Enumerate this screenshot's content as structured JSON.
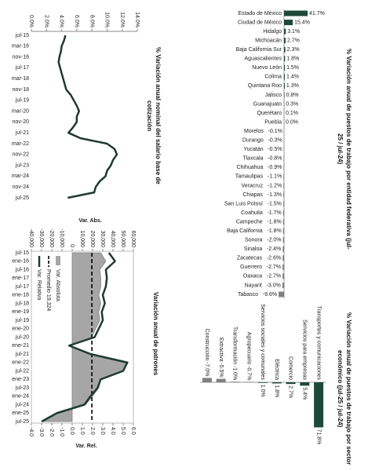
{
  "chart_data": [
    {
      "type": "line",
      "title": "% Variación anual nominal del salario base de cotización",
      "categories": [
        "jul-15",
        null,
        "mar-16",
        null,
        "nov-16",
        null,
        "jul-17",
        null,
        "mar-18",
        null,
        "nov-18",
        null,
        "jul-19",
        null,
        "mar-20",
        null,
        "nov-20",
        null,
        "jul-21",
        null,
        "mar-22",
        null,
        "nov-22",
        null,
        "jul-23",
        null,
        "mar-24",
        null,
        "nov-24",
        null,
        "jul-25"
      ],
      "values": [
        4.5,
        4.3,
        4.0,
        3.9,
        3.7,
        3.6,
        3.8,
        4.0,
        4.2,
        4.4,
        4.6,
        5.2,
        5.6,
        6.0,
        6.3,
        6.0,
        6.0,
        5.5,
        4.9,
        6.5,
        10.0,
        11.0,
        11.3,
        10.8,
        10.5,
        10.0,
        9.8,
        9.0,
        8.5,
        8.3,
        4.8
      ],
      "color": "#1e3a2f",
      "ylim": [
        0,
        14
      ],
      "yticks": [
        {
          "value": 0,
          "label": "0.0%"
        },
        {
          "value": 2,
          "label": "2.0%"
        },
        {
          "value": 4,
          "label": "4.0%"
        },
        {
          "value": 6,
          "label": "6.0%"
        },
        {
          "value": 8,
          "label": "8.0%"
        },
        {
          "value": 10,
          "label": "10.0%"
        },
        {
          "value": 12,
          "label": "12.0%"
        },
        {
          "value": 14,
          "label": "14.0%"
        }
      ]
    },
    {
      "type": "bar",
      "title": "% Variación anual de puestos de trabajo por entidad federativa (jul-25 / jul-24)",
      "categories": [
        "Estado de México",
        "Ciudad de México",
        "Hidalgo",
        "Michoacán",
        "Baja California Sur",
        "Aguascalientes",
        "Nuevo León",
        "Colima",
        "Quintana Roo",
        "Jalisco",
        "Guanajuato",
        "Querétaro",
        "Puebla",
        "Morelos",
        "Durango",
        "Yucatán",
        "Tlaxcala",
        "Chihuahua",
        "Tamaulipas",
        "Veracruz",
        "Chiapas",
        "San Luis Potosí",
        "Coahuila",
        "Campeche",
        "Baja California",
        "Sonora",
        "Sinaloa",
        "Zacatecas",
        "Guerrero",
        "Oaxaca",
        "Nayarit",
        "Tabasco"
      ],
      "values": [
        41.7,
        15.4,
        3.1,
        2.7,
        2.3,
        1.8,
        1.5,
        1.4,
        1.3,
        0.8,
        0.3,
        0.1,
        0.0,
        -0.1,
        -0.3,
        -0.5,
        -0.8,
        -0.9,
        -1.1,
        -1.2,
        -1.3,
        -1.5,
        -1.7,
        -1.8,
        -1.8,
        -2.0,
        -2.4,
        -2.6,
        -2.7,
        -2.7,
        -3.0,
        -9.6
      ],
      "value_labels": [
        "41.7%",
        "15.4%",
        "3.1%",
        "2.7%",
        "2.3%",
        "1.8%",
        "1.5%",
        "1.4%",
        "1.3%",
        "0.8%",
        "0.3%",
        "0.1%",
        "0.0%",
        "-0.1%",
        "-0.3%",
        "-0.5%",
        "-0.8%",
        "-0.9%",
        "-1.1%",
        "-1.2%",
        "-1.3%",
        "-1.5%",
        "-1.7%",
        "-1.8%",
        "-1.8%",
        "-2.0%",
        "-2.4%",
        "-2.6%",
        "-2.7%",
        "-2.7%",
        "-3.0%",
        "-9.6%"
      ],
      "color": "#1d4a38",
      "negative_color": "#808080"
    },
    {
      "type": "combo",
      "title": "Variación anual de patrones",
      "ylabel": "Var. Abs.",
      "y2label": "Var. Rel.",
      "categories": [
        "jul-15",
        "ene-16",
        "jul-16",
        "ene-17",
        "jul-17",
        "ene-18",
        "jul-18",
        "ene-19",
        "jul-19",
        "ene-20",
        "jul-20",
        "ene-21",
        "jul-21",
        "ene-22",
        "jul-22",
        "ene-23",
        "jul-23",
        "ene-24",
        "jul-24",
        "ene-25",
        "jul-25"
      ],
      "series": [
        {
          "name": "Var. Absoluta",
          "color": "#a6a6a6",
          "values": [
            28000,
            33000,
            27000,
            28000,
            28000,
            26000,
            28000,
            26000,
            27000,
            23000,
            19000,
            -3000,
            16000,
            55000,
            50000,
            28000,
            26000,
            20000,
            13000,
            -14000,
            -29000
          ]
        },
        {
          "name": "Var. Relativa",
          "color": "#1e3a2f",
          "axis": "y2",
          "values": [
            3.6,
            4.2,
            3.3,
            3.4,
            3.3,
            3.0,
            3.2,
            2.9,
            3.0,
            2.6,
            2.2,
            -0.3,
            1.8,
            5.4,
            5.0,
            2.8,
            2.5,
            1.8,
            1.2,
            -1.5,
            -3.0
          ]
        }
      ],
      "reference_line": {
        "label": "Promedio 19,324",
        "value": 19324,
        "color": "#000000"
      },
      "ylim": [
        -40000,
        60000
      ],
      "yticks": [
        {
          "value": -40000,
          "label": "-40,000"
        },
        {
          "value": -30000,
          "label": "-30,000"
        },
        {
          "value": -20000,
          "label": "-20,000"
        },
        {
          "value": -10000,
          "label": "-10,000"
        },
        0,
        {
          "value": 10000,
          "label": "10,000"
        },
        {
          "value": 20000,
          "label": "20,000"
        },
        {
          "value": 30000,
          "label": "30,000"
        },
        {
          "value": 40000,
          "label": "40,000"
        },
        {
          "value": 50000,
          "label": "50,000"
        },
        {
          "value": 60000,
          "label": "60,000"
        }
      ],
      "y2lim": [
        -4,
        6
      ],
      "y2ticks": [
        {
          "value": -4,
          "label": "-4.0"
        },
        {
          "value": -3,
          "label": "-3.0"
        },
        {
          "value": -2,
          "label": "-2.0"
        },
        {
          "value": -1,
          "label": "-1.0"
        },
        {
          "value": 0,
          "label": "0.0"
        },
        {
          "value": 1,
          "label": "1.0"
        },
        {
          "value": 2,
          "label": "2.0"
        },
        {
          "value": 3,
          "label": "3.0"
        },
        {
          "value": 4,
          "label": "4.0"
        },
        {
          "value": 5,
          "label": "5.0"
        },
        {
          "value": 6,
          "label": "6.0"
        }
      ]
    },
    {
      "type": "bar",
      "title": "% Variación anual de puestos de trabajo por sector económico (jul-25 / jul-24)",
      "categories": [
        "Construcción",
        "Extractiva",
        "Transformación",
        "Agropecuario",
        "Servicios sociales y comunales",
        "Eléctrica",
        "Comercio",
        "Servicios para empresas",
        "Transportes y comunicaciones"
      ],
      "values": [
        -7.0,
        -5.5,
        -1.0,
        -0.7,
        1.0,
        1.8,
        2.7,
        5.4,
        71.8
      ],
      "value_labels": [
        "-7.0%",
        "-5.5%",
        "-1.0%",
        "-0.7%",
        "1.0%",
        "1.8%",
        "2.7%",
        "5.4%",
        "71.8%"
      ],
      "color": "#1d4a38",
      "negative_color": "#808080"
    }
  ]
}
